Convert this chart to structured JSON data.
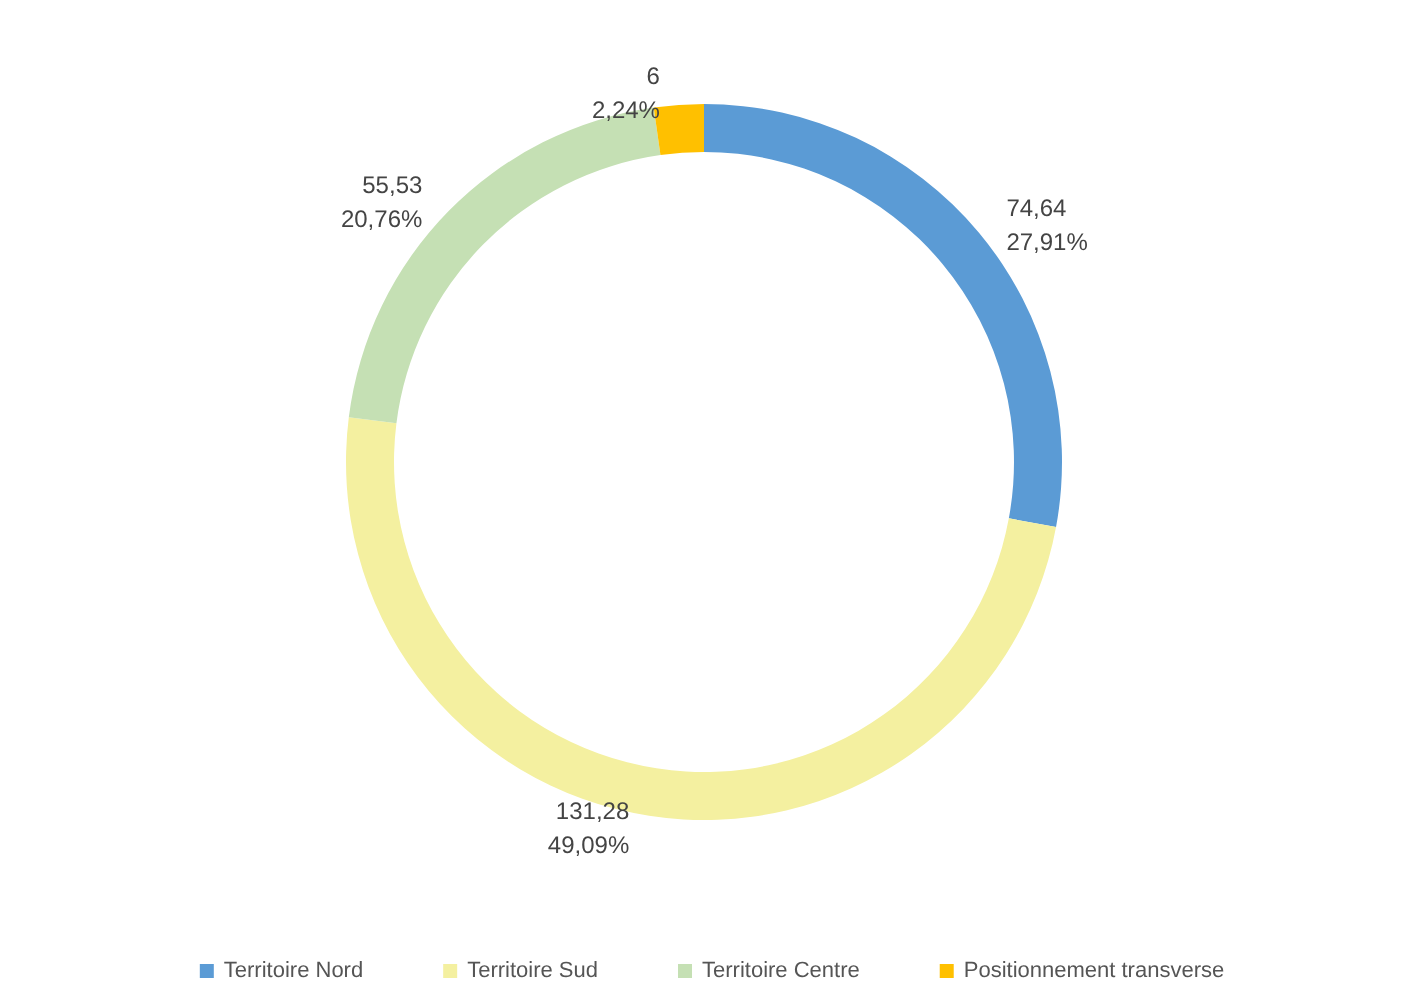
{
  "chart_data": {
    "type": "donut",
    "categories": [
      "Territoire Nord",
      "Territoire Sud",
      "Territoire Centre",
      "Positionnement transverse"
    ],
    "values": [
      74.64,
      131.28,
      55.53,
      6
    ],
    "colors": [
      "#5b9bd5",
      "#f4f0a0",
      "#c5e0b4",
      "#ffc000"
    ],
    "value_labels": [
      "74,64\n27,91%",
      "131,28\n49,09%",
      "55,53\n20,76%",
      "6\n2,24%"
    ],
    "legend": "bottom"
  }
}
